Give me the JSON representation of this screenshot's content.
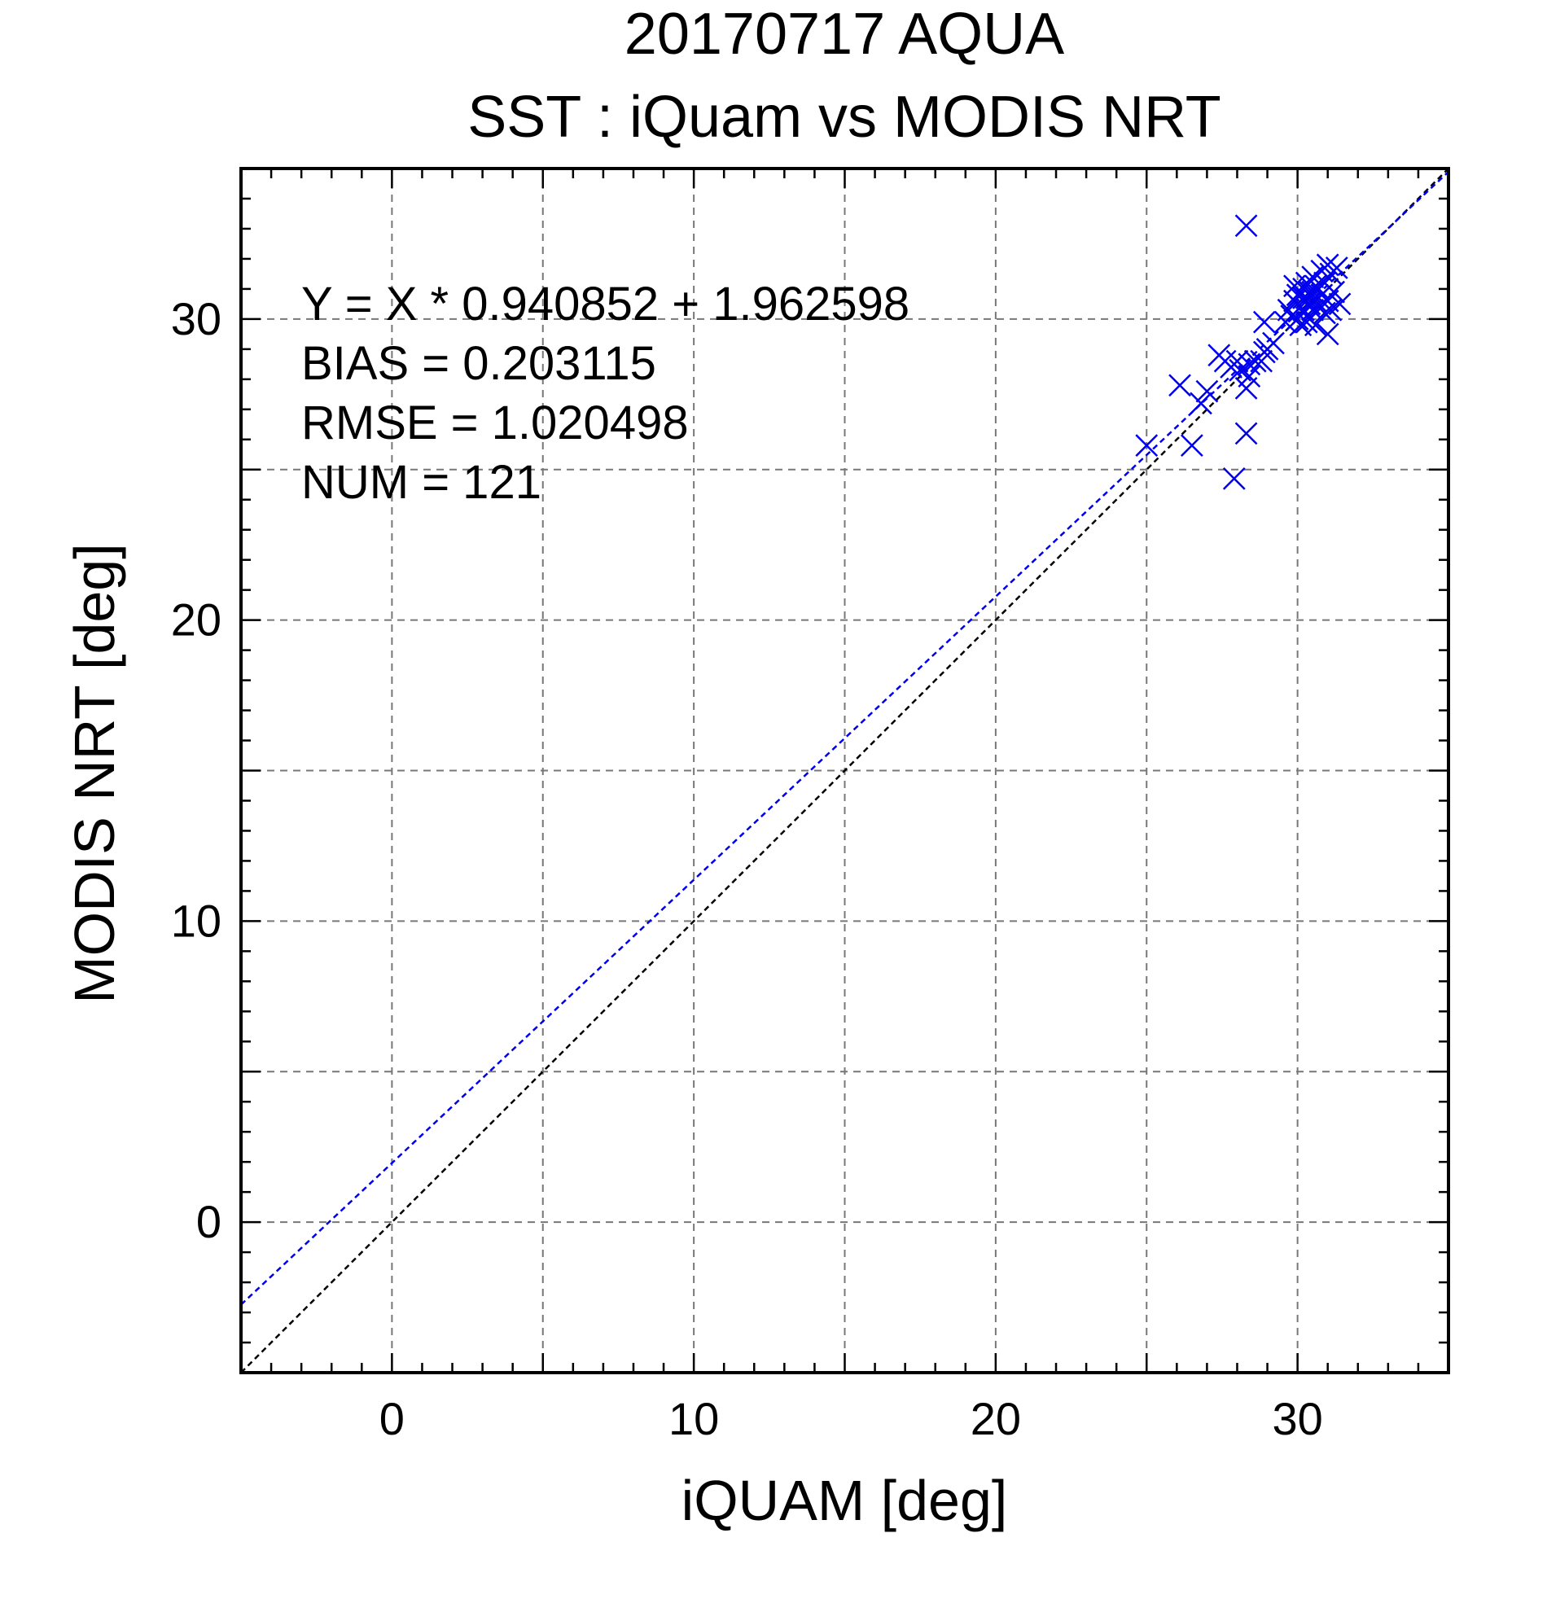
{
  "chart_data": {
    "type": "scatter",
    "title": "20170717 AQUA",
    "subtitle": "SST : iQuam vs MODIS NRT",
    "xlabel": "iQUAM [deg]",
    "ylabel": "MODIS NRT [deg]",
    "xlim": [
      -5,
      35
    ],
    "ylim": [
      -5,
      35
    ],
    "xticks": [
      0,
      10,
      20,
      30
    ],
    "yticks": [
      0,
      10,
      20,
      30
    ],
    "xtick_labels": [
      "0",
      "10",
      "20",
      "30"
    ],
    "ytick_labels": [
      "0",
      "10",
      "20",
      "30"
    ],
    "grid": true,
    "marker": "x",
    "marker_color": "#0000ee",
    "stats": [
      "Y = X * 0.940852 + 1.962598",
      "BIAS = 0.203115",
      "RMSE = 1.020498",
      "NUM = 121"
    ],
    "fit_line": {
      "slope": 0.940852,
      "intercept": 1.962598,
      "color": "#0000ee"
    },
    "identity_line": {
      "slope": 1,
      "intercept": 0,
      "color": "#000000"
    },
    "points": [
      [
        28.3,
        33.1
      ],
      [
        25.0,
        25.8
      ],
      [
        26.1,
        27.8
      ],
      [
        26.5,
        25.8
      ],
      [
        26.8,
        27.2
      ],
      [
        27.0,
        27.6
      ],
      [
        27.4,
        28.8
      ],
      [
        27.6,
        28.6
      ],
      [
        27.8,
        28.4
      ],
      [
        28.0,
        28.6
      ],
      [
        28.1,
        28.3
      ],
      [
        28.3,
        27.7
      ],
      [
        28.4,
        28.1
      ],
      [
        28.4,
        28.5
      ],
      [
        28.6,
        28.6
      ],
      [
        28.8,
        28.6
      ],
      [
        28.9,
        28.9
      ],
      [
        29.0,
        29.0
      ],
      [
        28.9,
        29.9
      ],
      [
        29.2,
        29.2
      ],
      [
        27.9,
        24.7
      ],
      [
        28.3,
        26.2
      ],
      [
        29.6,
        29.9
      ],
      [
        29.7,
        30.3
      ],
      [
        29.8,
        30.1
      ],
      [
        29.9,
        31.1
      ],
      [
        29.9,
        30.6
      ],
      [
        30.0,
        30.8
      ],
      [
        30.0,
        30.0
      ],
      [
        30.1,
        30.4
      ],
      [
        30.1,
        29.8
      ],
      [
        30.2,
        31.0
      ],
      [
        30.2,
        30.3
      ],
      [
        30.3,
        30.7
      ],
      [
        30.3,
        29.9
      ],
      [
        30.3,
        31.2
      ],
      [
        30.4,
        30.5
      ],
      [
        30.4,
        30.0
      ],
      [
        30.5,
        30.9
      ],
      [
        30.5,
        31.4
      ],
      [
        30.5,
        30.3
      ],
      [
        30.6,
        30.6
      ],
      [
        30.6,
        29.8
      ],
      [
        30.7,
        31.0
      ],
      [
        30.7,
        30.4
      ],
      [
        30.8,
        31.6
      ],
      [
        30.8,
        30.8
      ],
      [
        30.9,
        30.2
      ],
      [
        30.9,
        31.2
      ],
      [
        31.0,
        30.6
      ],
      [
        31.0,
        31.8
      ],
      [
        31.1,
        30.3
      ],
      [
        31.1,
        31.5
      ],
      [
        31.2,
        30.9
      ],
      [
        31.3,
        31.7
      ],
      [
        31.4,
        30.5
      ],
      [
        31.0,
        29.5
      ],
      [
        30.4,
        30.9
      ],
      [
        30.6,
        31.1
      ],
      [
        30.2,
        30.7
      ]
    ]
  }
}
